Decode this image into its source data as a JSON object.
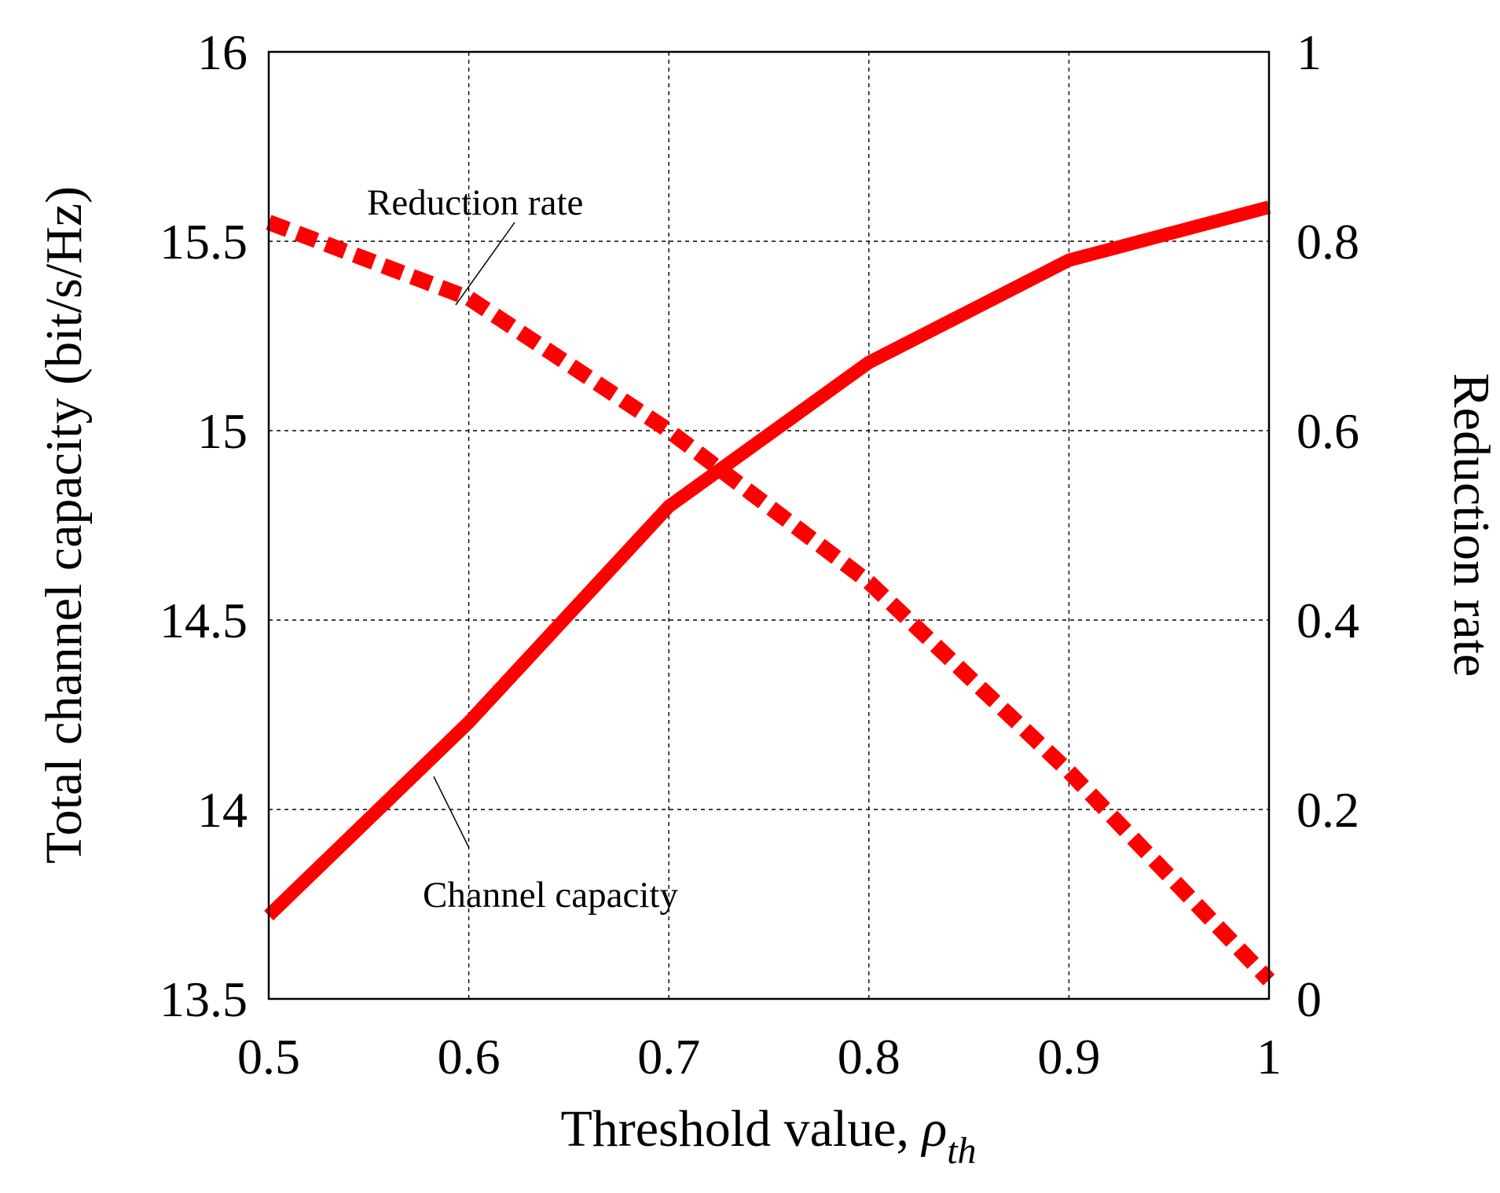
{
  "chart_data": {
    "type": "line",
    "title": "",
    "xlabel": "Threshold value, ",
    "xlabel_symbol": "ρ",
    "xlabel_subscript": "th",
    "ylabel": "Total channel capacity (bit/s/Hz)",
    "y2label": "Reduction rate",
    "xlim": [
      0.5,
      1.0
    ],
    "ylim": [
      13.5,
      16.0
    ],
    "y2lim": [
      0.0,
      1.0
    ],
    "grid": true,
    "x_ticks": [
      "0.5",
      "0.6",
      "0.7",
      "0.8",
      "0.9",
      "1"
    ],
    "y_ticks": [
      "13.5",
      "14",
      "14.5",
      "15",
      "15.5",
      "16"
    ],
    "y2_ticks": [
      "0",
      "0.2",
      "0.4",
      "0.6",
      "0.8",
      "1"
    ],
    "x_tick_values": [
      0.5,
      0.6,
      0.7,
      0.8,
      0.9,
      1.0
    ],
    "y_tick_values": [
      13.5,
      14.0,
      14.5,
      15.0,
      15.5,
      16.0
    ],
    "y2_tick_values": [
      0.0,
      0.2,
      0.4,
      0.6,
      0.8,
      1.0
    ],
    "series": [
      {
        "name": "Channel capacity",
        "axis": "left",
        "style": "solid",
        "color": "#ff0000",
        "x": [
          0.5,
          0.6,
          0.7,
          0.8,
          0.9,
          1.0
        ],
        "y": [
          13.72,
          14.23,
          14.8,
          15.18,
          15.45,
          15.59
        ]
      },
      {
        "name": "Reduction rate",
        "axis": "right",
        "style": "dashed",
        "color": "#ff0000",
        "x": [
          0.5,
          0.6,
          0.7,
          0.8,
          0.9,
          1.0
        ],
        "y": [
          0.82,
          0.74,
          0.6,
          0.44,
          0.24,
          0.02
        ]
      }
    ],
    "annotations": [
      {
        "text": "Reduction rate",
        "series": "Reduction rate",
        "point": [
          0.595,
          0.75
        ]
      },
      {
        "text": "Channel capacity",
        "series": "Channel capacity",
        "point": [
          0.58,
          14.1
        ]
      }
    ]
  }
}
